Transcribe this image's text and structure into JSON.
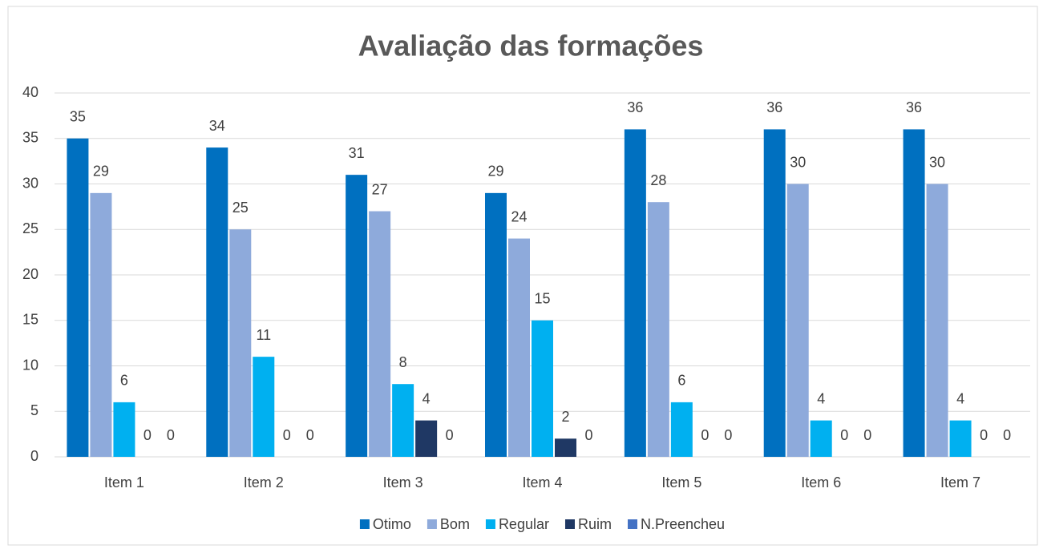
{
  "chart_data": {
    "type": "bar",
    "title": "Avaliação das formações",
    "categories": [
      "Item 1",
      "Item 2",
      "Item 3",
      "Item 4",
      "Item 5",
      "Item 6",
      "Item 7"
    ],
    "series": [
      {
        "name": "Otimo",
        "color": "#0070c0",
        "values": [
          35,
          34,
          31,
          29,
          36,
          36,
          36
        ]
      },
      {
        "name": "Bom",
        "color": "#8eaadb",
        "values": [
          29,
          25,
          27,
          24,
          28,
          30,
          30
        ]
      },
      {
        "name": "Regular",
        "color": "#00b0f0",
        "values": [
          6,
          11,
          8,
          15,
          6,
          4,
          4
        ]
      },
      {
        "name": "Ruim",
        "color": "#1f3864",
        "values": [
          0,
          0,
          4,
          2,
          0,
          0,
          0
        ]
      },
      {
        "name": "N.Preencheu",
        "color": "#4472c4",
        "values": [
          0,
          0,
          0,
          0,
          0,
          0,
          0
        ]
      }
    ],
    "ylim": [
      0,
      40
    ],
    "yticks": [
      0,
      5,
      10,
      15,
      20,
      25,
      30,
      35,
      40
    ],
    "grid": true,
    "legend": "bottom"
  }
}
